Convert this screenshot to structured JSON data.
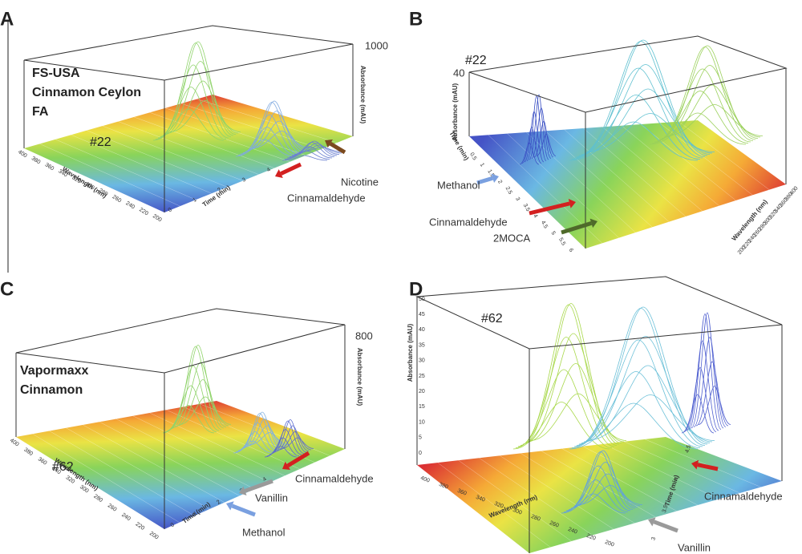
{
  "panels": [
    {
      "letter": "A",
      "sample": [
        "FS-USA",
        "Cinnamon Ceylon",
        "FA"
      ],
      "id": "#22",
      "abs_ticks": [
        "1000"
      ],
      "y_label": "Absorbance (mAU)",
      "wavelength_label": "Wavelength (nm)",
      "time_label": "Time (min)",
      "wavelength_ticks": [
        "400",
        "380",
        "360",
        "340",
        "320",
        "300",
        "280",
        "260",
        "240",
        "220",
        "200"
      ],
      "time_ticks": [
        "0",
        "1",
        "2",
        "3",
        "4"
      ],
      "annotations": [
        "Nicotine",
        "Cinnamaldehyde"
      ]
    },
    {
      "letter": "B",
      "id": "#22",
      "abs_ticks": [
        "40"
      ],
      "y_label": "Absorbance (mAU)",
      "wavelength_label": "Wavelength (nm)",
      "time_label": "Time (min)",
      "wavelength_ticks": [
        "400",
        "380",
        "360",
        "340",
        "320",
        "300",
        "280",
        "260",
        "240",
        "220",
        "200"
      ],
      "time_ticks": [
        "0.5",
        "1",
        "1.5",
        "2",
        "2.5",
        "3",
        "3.5",
        "4",
        "4.5",
        "5",
        "5.5",
        "6"
      ],
      "annotations": [
        "Methanol",
        "Cinnamaldehyde",
        "2MOCA"
      ]
    },
    {
      "letter": "C",
      "sample": [
        "Vapormaxx",
        "Cinnamon"
      ],
      "id": "#62",
      "abs_ticks": [
        "800"
      ],
      "y_label": "Absorbance (mAU)",
      "wavelength_label": "Wavelength (nm)",
      "time_label": "Time (min)",
      "wavelength_ticks": [
        "400",
        "380",
        "360",
        "340",
        "320",
        "300",
        "280",
        "260",
        "240",
        "220",
        "200"
      ],
      "time_ticks": [
        "0",
        "1",
        "2",
        "3",
        "4"
      ],
      "annotations": [
        "Cinnamaldehyde",
        "Vanillin",
        "Methanol"
      ]
    },
    {
      "letter": "D",
      "id": "#62",
      "abs_ticks": [
        "50",
        "45",
        "40",
        "35",
        "30",
        "25",
        "20",
        "15",
        "10",
        "5",
        "0"
      ],
      "y_label": "Absorbance (mAU)",
      "wavelength_label": "Wavelength (nm)",
      "time_label": "Time (min)",
      "wavelength_ticks": [
        "400",
        "380",
        "360",
        "340",
        "320",
        "300",
        "280",
        "260",
        "240",
        "220",
        "200"
      ],
      "time_ticks": [
        "3",
        "3.5",
        "4",
        "4.5"
      ],
      "annotations": [
        "Cinnamaldehyde",
        "Vanillin"
      ]
    }
  ]
}
